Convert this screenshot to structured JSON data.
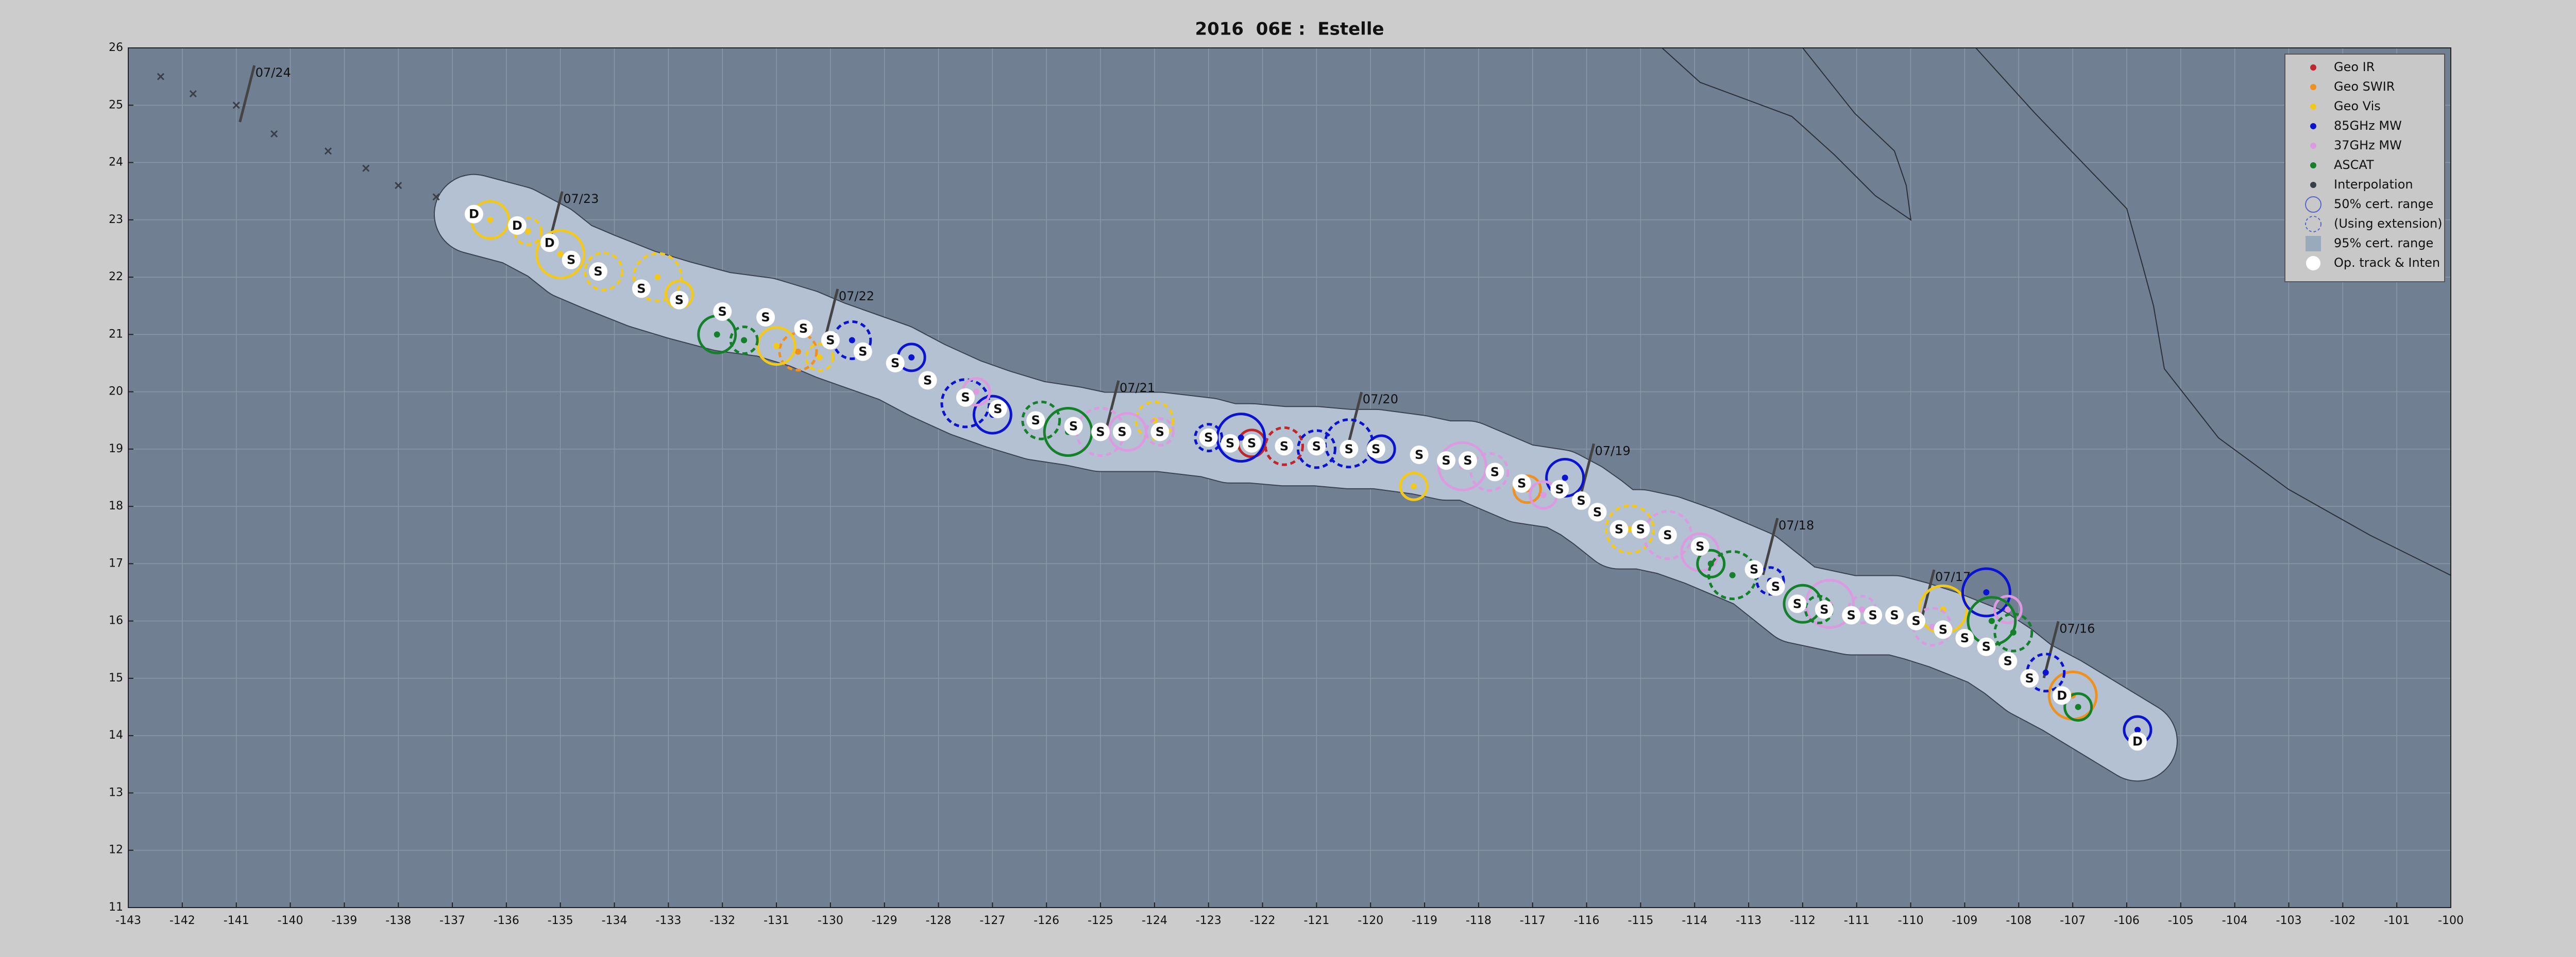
{
  "chart_data": {
    "type": "track",
    "title": "2016  06E :  Estelle",
    "xlim": [
      -143,
      -100
    ],
    "ylim": [
      11,
      26
    ],
    "xticks": [
      -143,
      -142,
      -141,
      -140,
      -139,
      -138,
      -137,
      -136,
      -135,
      -134,
      -133,
      -132,
      -131,
      -130,
      -129,
      -128,
      -127,
      -126,
      -125,
      -124,
      -123,
      -122,
      -121,
      -120,
      -119,
      -118,
      -117,
      -116,
      -115,
      -114,
      -113,
      -112,
      -111,
      -110,
      -109,
      -108,
      -107,
      -106,
      -105,
      -104,
      -103,
      -102,
      -101,
      -100
    ],
    "yticks": [
      11,
      12,
      13,
      14,
      15,
      16,
      17,
      18,
      19,
      20,
      21,
      22,
      23,
      24,
      25,
      26
    ],
    "grid": true,
    "legend_position": "upper right",
    "series": [
      {
        "name": "Geo IR",
        "color": "#c0272d",
        "x": [
          -122.2,
          -121.6
        ],
        "y": [
          19.1,
          19.05
        ]
      },
      {
        "name": "Geo SWIR",
        "color": "#f0901e",
        "x": [
          -117.1,
          -130.6,
          -107.0
        ],
        "y": [
          18.3,
          20.7,
          14.7
        ]
      },
      {
        "name": "Geo Vis",
        "color": "#f2c81a",
        "x": [
          -119.2,
          -124.0,
          -109.4,
          -130.2,
          -131.0,
          -133.2,
          -132.8,
          -134.2,
          -135.0,
          -135.6,
          -136.3,
          -115.2
        ],
        "y": [
          18.35,
          19.5,
          16.2,
          20.6,
          20.8,
          22.0,
          21.7,
          22.1,
          22.4,
          22.8,
          23.0,
          17.6
        ]
      },
      {
        "name": "85GHz MW",
        "color": "#0a14d0",
        "x": [
          -105.8,
          -107.5,
          -108.6,
          -112.6,
          -116.4,
          -120.4,
          -119.8,
          -121.0,
          -122.4,
          -123.0,
          -127.0,
          -127.5,
          -128.5,
          -129.6
        ],
        "y": [
          14.1,
          15.1,
          16.5,
          16.7,
          18.5,
          19.1,
          19.0,
          19.0,
          19.2,
          19.2,
          19.6,
          19.8,
          20.6,
          20.9
        ]
      },
      {
        "name": "37GHz MW",
        "color": "#dc9ae0",
        "x": [
          -108.2,
          -109.6,
          -111.5,
          -110.9,
          -113.9,
          -114.5,
          -116.8,
          -117.8,
          -118.3,
          -123.9,
          -124.5,
          -125.0,
          -127.3
        ],
        "y": [
          16.2,
          15.9,
          16.3,
          16.2,
          17.2,
          17.5,
          18.2,
          18.6,
          18.7,
          19.3,
          19.3,
          19.3,
          20.0
        ]
      },
      {
        "name": "ASCAT",
        "color": "#15802a",
        "x": [
          -106.9,
          -108.1,
          -108.5,
          -111.7,
          -112.0,
          -113.3,
          -113.7,
          -126.1,
          -125.6,
          -131.6,
          -132.1
        ],
        "y": [
          14.5,
          15.8,
          16.0,
          16.2,
          16.3,
          16.8,
          17.0,
          19.5,
          19.3,
          20.9,
          21.0
        ]
      },
      {
        "name": "Interpolation",
        "color": "#3a3f48",
        "x": [
          -142.4,
          -141.8,
          -141.0,
          -140.3,
          -139.3,
          -138.6,
          -138.0,
          -137.3
        ],
        "y": [
          25.5,
          25.2,
          25.0,
          24.5,
          24.2,
          23.9,
          23.6,
          23.4
        ]
      }
    ],
    "legend_extra": [
      "50% cert. range",
      "(Using extension)",
      "95% cert. range"
    ],
    "track": {
      "name": "Op. track & Inten",
      "color": "#ffffff",
      "x": [
        -105.8,
        -107.2,
        -107.8,
        -108.2,
        -108.6,
        -109.0,
        -109.4,
        -109.9,
        -110.3,
        -110.7,
        -111.1,
        -111.6,
        -112.1,
        -112.5,
        -112.9,
        -113.9,
        -114.5,
        -115.0,
        -115.4,
        -115.8,
        -116.1,
        -116.5,
        -117.2,
        -117.7,
        -118.2,
        -118.6,
        -119.1,
        -119.9,
        -120.4,
        -121.0,
        -121.6,
        -122.2,
        -122.6,
        -123.0,
        -123.9,
        -124.6,
        -125.0,
        -125.5,
        -126.2,
        -126.9,
        -127.5,
        -128.2,
        -128.8,
        -129.4,
        -130.0,
        -130.5,
        -131.2,
        -132.0,
        -132.8,
        -133.5,
        -134.3,
        -134.8,
        -135.2,
        -135.8,
        -136.6
      ],
      "y": [
        13.9,
        14.7,
        15.0,
        15.3,
        15.55,
        15.7,
        15.85,
        16.0,
        16.1,
        16.1,
        16.1,
        16.2,
        16.3,
        16.6,
        16.9,
        17.3,
        17.5,
        17.6,
        17.6,
        17.9,
        18.1,
        18.3,
        18.4,
        18.6,
        18.8,
        18.8,
        18.9,
        19.0,
        19.0,
        19.05,
        19.05,
        19.1,
        19.1,
        19.2,
        19.3,
        19.3,
        19.3,
        19.4,
        19.5,
        19.7,
        19.9,
        20.2,
        20.5,
        20.7,
        20.9,
        21.1,
        21.3,
        21.4,
        21.6,
        21.8,
        22.1,
        22.3,
        22.6,
        22.9,
        23.1
      ],
      "labels": [
        "D",
        "D",
        "S",
        "S",
        "S",
        "S",
        "S",
        "S",
        "S",
        "S",
        "S",
        "S",
        "S",
        "S",
        "S",
        "S",
        "S",
        "S",
        "S",
        "S",
        "S",
        "S",
        "S",
        "S",
        "S",
        "S",
        "S",
        "S",
        "S",
        "S",
        "S",
        "S",
        "S",
        "S",
        "S",
        "S",
        "S",
        "S",
        "S",
        "S",
        "S",
        "S",
        "S",
        "S",
        "S",
        "S",
        "S",
        "S",
        "S",
        "S",
        "S",
        "S",
        "D",
        "D",
        "D"
      ]
    },
    "dates": {
      "labels": [
        "07/16",
        "07/17",
        "07/18",
        "07/19",
        "07/20",
        "07/21",
        "07/22",
        "07/23",
        "07/24"
      ],
      "x": [
        -107.4,
        -109.7,
        -112.6,
        -116.0,
        -120.3,
        -124.8,
        -130.0,
        -135.1,
        -140.8
      ],
      "y": [
        15.5,
        16.4,
        17.3,
        18.6,
        19.5,
        19.7,
        21.3,
        23.0,
        25.2
      ]
    }
  }
}
